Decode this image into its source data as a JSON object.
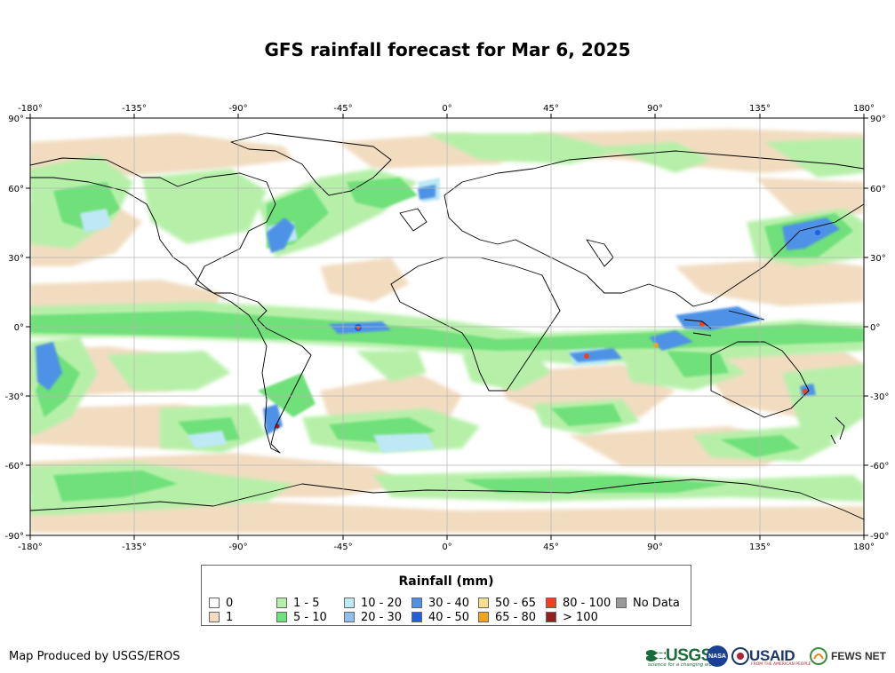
{
  "title": "GFS rainfall forecast for Mar 6, 2025",
  "map": {
    "lon_labels": [
      "-180°",
      "-135°",
      "-90°",
      "-45°",
      "0°",
      "45°",
      "90°",
      "135°",
      "180°"
    ],
    "lat_labels": [
      "90°",
      "60°",
      "30°",
      "0°",
      "-30°",
      "-60°",
      "-90°"
    ],
    "lon_values": [
      -180,
      -135,
      -90,
      -45,
      0,
      45,
      90,
      135,
      180
    ],
    "lat_values": [
      90,
      60,
      30,
      0,
      -30,
      -60,
      -90
    ]
  },
  "legend": {
    "title": "Rainfall (mm)",
    "items": [
      {
        "label": "0",
        "color": "#ffffff"
      },
      {
        "label": "1",
        "color": "#f1dcc0"
      },
      {
        "label": "1 - 5",
        "color": "#b6f0a8"
      },
      {
        "label": "5 - 10",
        "color": "#6fe07a"
      },
      {
        "label": "10 - 20",
        "color": "#bde9f4"
      },
      {
        "label": "20 - 30",
        "color": "#8ec0ee"
      },
      {
        "label": "30 - 40",
        "color": "#4e92e6"
      },
      {
        "label": "40 - 50",
        "color": "#1f5fe0"
      },
      {
        "label": "50 - 65",
        "color": "#f8e08a"
      },
      {
        "label": "65 - 80",
        "color": "#f6a21a"
      },
      {
        "label": "80 - 100",
        "color": "#f2401a"
      },
      {
        "label": "> 100",
        "color": "#9b1c1c"
      },
      {
        "label": "No Data",
        "color": "#999999"
      }
    ]
  },
  "credit": "Map Produced by USGS/EROS",
  "logos": {
    "usgs": "USGS",
    "usgs_tagline": "science for a changing world",
    "nasa": "NASA",
    "usaid": "USAID",
    "usaid_tagline": "FROM THE AMERICAN PEOPLE",
    "fews": "FEWS NET"
  }
}
